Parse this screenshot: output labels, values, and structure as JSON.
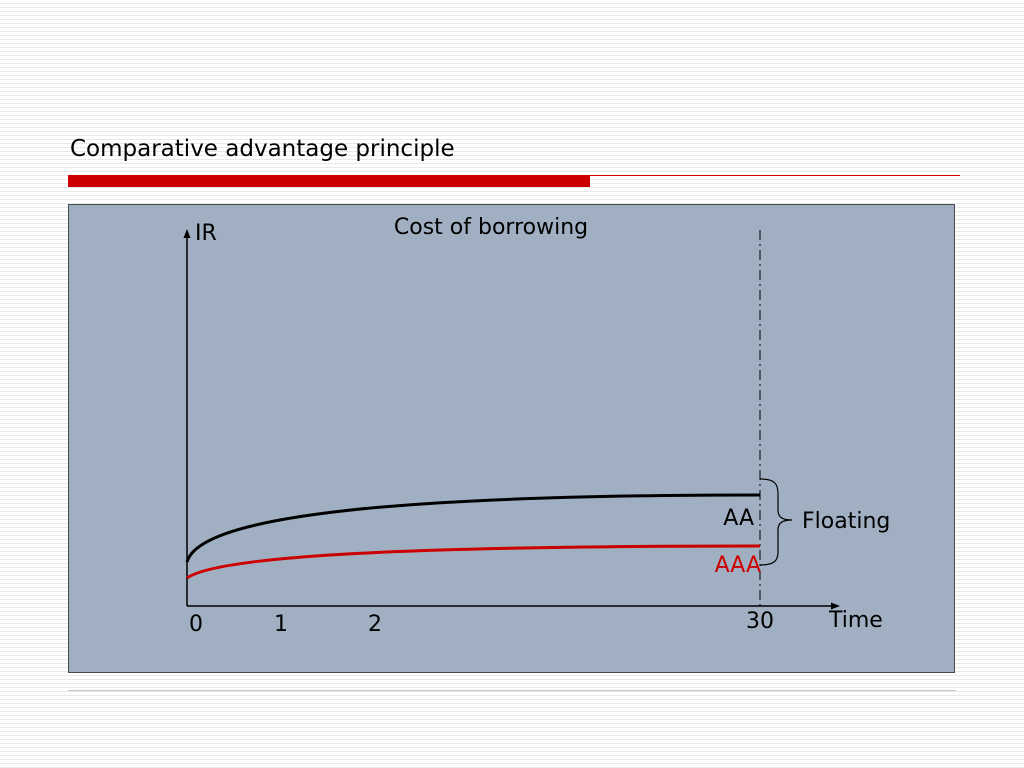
{
  "slide": {
    "title": "Comparative advantage principle"
  },
  "diagram": {
    "heading": "Cost of borrowing",
    "y_axis_label": "IR",
    "x_axis_label": "Time",
    "x_ticks": [
      "0",
      "1",
      "2",
      "30"
    ],
    "curves": [
      {
        "label": "AA",
        "color": "#000000"
      },
      {
        "label": "AAA",
        "color": "#cc0000"
      }
    ],
    "bracket_label": "Floating"
  },
  "colors": {
    "accent": "#cc0000",
    "panel_background": "#a0b0c2"
  }
}
